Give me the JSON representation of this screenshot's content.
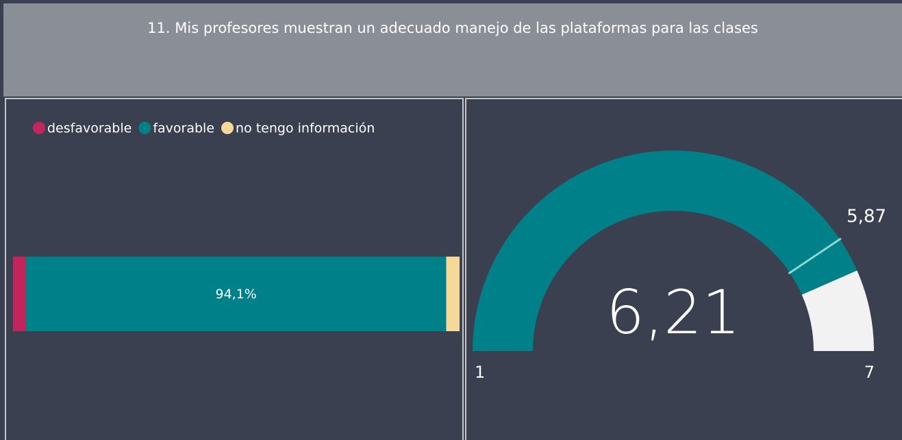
{
  "title": "11. Mis profesores muestran un adecuado manejo de las plataformas para las clases",
  "chart_data": [
    {
      "type": "stacked-bar-100",
      "xlim": [
        0,
        100
      ],
      "series": [
        {
          "name": "desfavorable",
          "color": "#c2255c",
          "values": [
            2.9
          ]
        },
        {
          "name": "favorable",
          "color": "#008189",
          "values": [
            94.1
          ],
          "value_labels": [
            "94,1%"
          ]
        },
        {
          "name": "no tengo información",
          "color": "#f5d99a",
          "values": [
            3.0
          ]
        }
      ]
    },
    {
      "type": "gauge",
      "min": 1,
      "max": 7,
      "value": 6.21,
      "value_label": "6,21",
      "target": 5.87,
      "target_label": "5,87",
      "color": "#008189",
      "track_color": "#f3f2f2",
      "target_color": "#8ed6cf"
    }
  ]
}
